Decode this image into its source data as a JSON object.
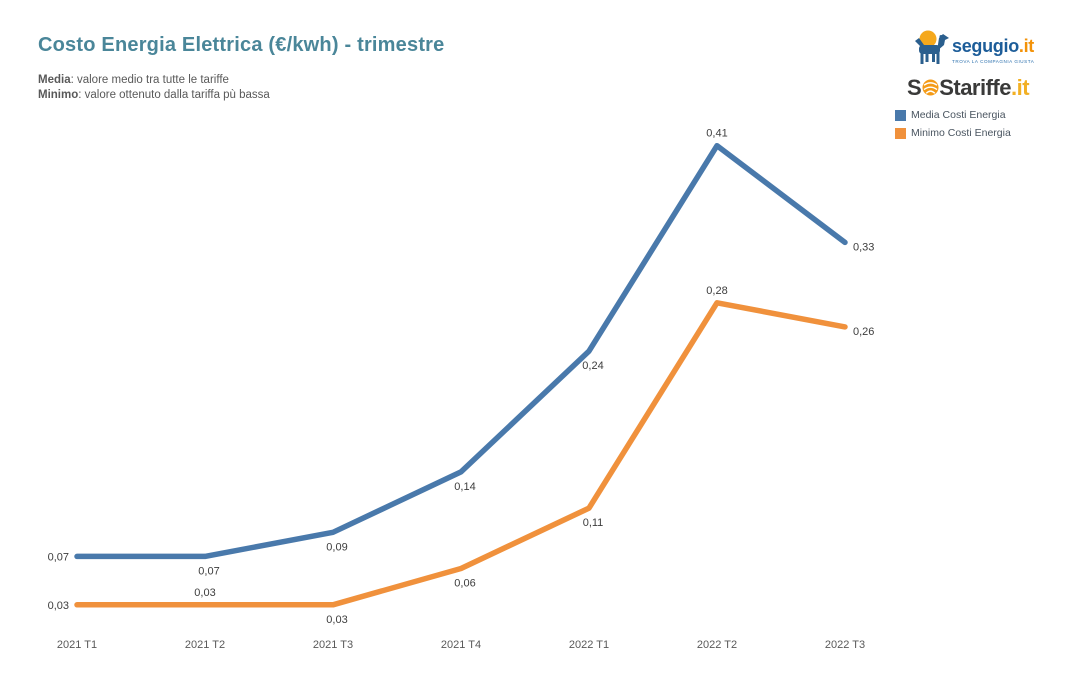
{
  "header": {
    "title": "Costo Energia Elettrica (€/kwh) - trimestre",
    "subtitle": [
      {
        "term": "Media",
        "desc": ": valore medio tra tutte le tariffe"
      },
      {
        "term": "Minimo",
        "desc": ": valore ottenuto dalla tariffa pù bassa"
      }
    ]
  },
  "logos": {
    "segugio": {
      "name": "segugio",
      "tld": ".it",
      "tagline": "TROVA LA COMPAGNIA GIUSTA"
    },
    "sostariffe": {
      "part1": "S",
      "part2": "S",
      "part3": "tariffe",
      "tld": ".it"
    }
  },
  "legend": [
    {
      "label": "Media Costi Energia",
      "color": "#4979ab"
    },
    {
      "label": "Minimo Costi Energia",
      "color": "#f0913c"
    }
  ],
  "colors": {
    "title": "#4a8699",
    "media_line": "#4979ab",
    "minimo_line": "#f0913c",
    "data_label": "#3d3d3d",
    "axis_label": "#595959"
  },
  "chart_data": {
    "type": "line",
    "title": "Costo Energia Elettrica (€/kwh) - trimestre",
    "xlabel": "",
    "ylabel": "",
    "ylim": [
      0,
      0.45
    ],
    "grid": false,
    "legend_position": "top-right",
    "categories": [
      "2021 T1",
      "2021 T2",
      "2021 T3",
      "2021 T4",
      "2022 T1",
      "2022 T2",
      "2022 T3"
    ],
    "series": [
      {
        "name": "Media Costi Energia",
        "color": "#4979ab",
        "values": [
          0.07,
          0.07,
          0.09,
          0.14,
          0.24,
          0.41,
          0.33
        ],
        "labels": [
          "0,07",
          "0,07",
          "0,09",
          "0,14",
          "0,24",
          "0,41",
          "0,33"
        ],
        "label_positions": [
          "left",
          "below",
          "below",
          "below",
          "below",
          "above",
          "right"
        ]
      },
      {
        "name": "Minimo Costi Energia",
        "color": "#f0913c",
        "values": [
          0.03,
          0.03,
          0.03,
          0.06,
          0.11,
          0.28,
          0.26
        ],
        "labels": [
          "0,03",
          "0,03",
          "0,03",
          "0,06",
          "0,11",
          "0,28",
          "0,26"
        ],
        "label_positions": [
          "left",
          "above",
          "below",
          "below",
          "below",
          "above",
          "right"
        ]
      }
    ]
  }
}
